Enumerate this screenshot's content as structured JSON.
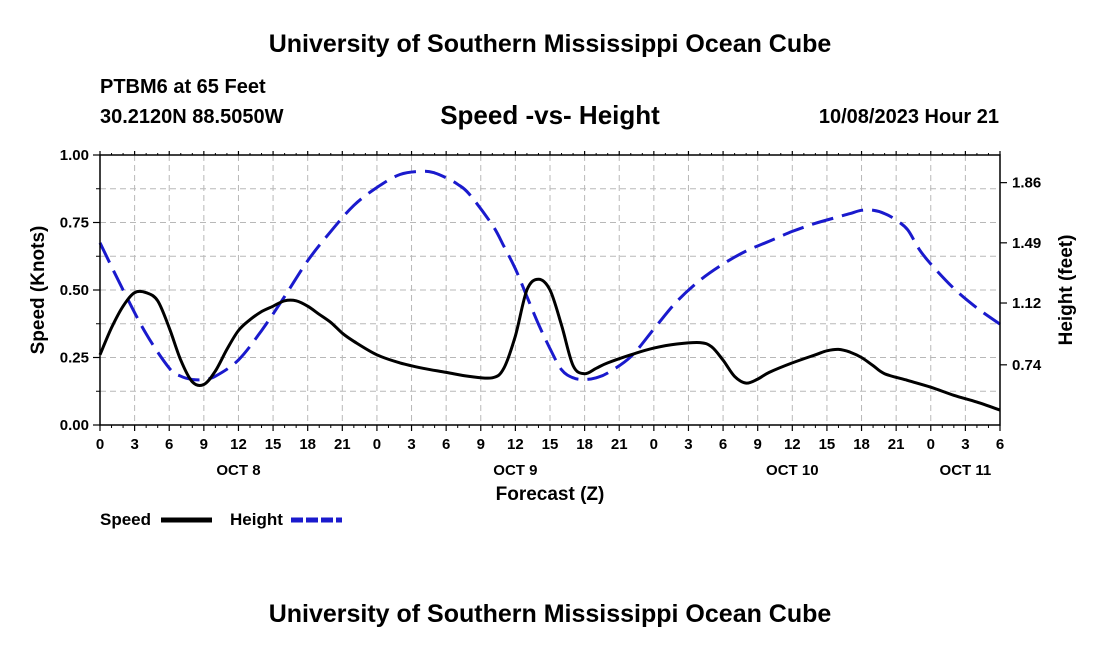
{
  "header": {
    "title": "University of Southern Mississippi Ocean Cube",
    "station": "PTBM6 at 65 Feet",
    "coords": "30.2120N  88.5050W",
    "datetime": "10/08/2023 Hour 21"
  },
  "footer": {
    "title": "University of Southern Mississippi Ocean Cube"
  },
  "chart_data": {
    "type": "line",
    "title": "Speed -vs- Height",
    "xlabel": "Forecast (Z)",
    "ylabel": "Speed (Knots)",
    "y2label": "Height (feet)",
    "x_unit": "hours since OCT 8 00Z",
    "xlim": [
      0,
      78
    ],
    "ylim": [
      0,
      1
    ],
    "y2lim": [
      0.37,
      2.03
    ],
    "grid": true,
    "x_ticks": [
      {
        "x": 0,
        "label": "0"
      },
      {
        "x": 3,
        "label": "3"
      },
      {
        "x": 6,
        "label": "6"
      },
      {
        "x": 9,
        "label": "9"
      },
      {
        "x": 12,
        "label": "12"
      },
      {
        "x": 15,
        "label": "15"
      },
      {
        "x": 18,
        "label": "18"
      },
      {
        "x": 21,
        "label": "21"
      },
      {
        "x": 24,
        "label": "0"
      },
      {
        "x": 27,
        "label": "3"
      },
      {
        "x": 30,
        "label": "6"
      },
      {
        "x": 33,
        "label": "9"
      },
      {
        "x": 36,
        "label": "12"
      },
      {
        "x": 39,
        "label": "15"
      },
      {
        "x": 42,
        "label": "18"
      },
      {
        "x": 45,
        "label": "21"
      },
      {
        "x": 48,
        "label": "0"
      },
      {
        "x": 51,
        "label": "3"
      },
      {
        "x": 54,
        "label": "6"
      },
      {
        "x": 57,
        "label": "9"
      },
      {
        "x": 60,
        "label": "12"
      },
      {
        "x": 63,
        "label": "15"
      },
      {
        "x": 66,
        "label": "18"
      },
      {
        "x": 69,
        "label": "21"
      },
      {
        "x": 72,
        "label": "0"
      },
      {
        "x": 75,
        "label": "3"
      },
      {
        "x": 78,
        "label": "6"
      }
    ],
    "date_labels": [
      {
        "x": 12,
        "label": "OCT 8"
      },
      {
        "x": 36,
        "label": "OCT 9"
      },
      {
        "x": 60,
        "label": "OCT 10"
      },
      {
        "x": 75,
        "label": "OCT 11"
      }
    ],
    "y_ticks": [
      {
        "value": 0.0,
        "label": "0.00"
      },
      {
        "value": 0.25,
        "label": "0.25"
      },
      {
        "value": 0.5,
        "label": "0.50"
      },
      {
        "value": 0.75,
        "label": "0.75"
      },
      {
        "value": 1.0,
        "label": "1.00"
      }
    ],
    "y2_ticks": [
      {
        "value": 0.74,
        "label": "0.74"
      },
      {
        "value": 1.12,
        "label": "1.12"
      },
      {
        "value": 1.49,
        "label": "1.49"
      },
      {
        "value": 1.86,
        "label": "1.86"
      }
    ],
    "series": [
      {
        "name": "Speed",
        "axis": "left",
        "color": "#000000",
        "style": "solid",
        "x": [
          0,
          1,
          2,
          3,
          4,
          5,
          6,
          7,
          8,
          9,
          10,
          11,
          12,
          13,
          14,
          15,
          16,
          17,
          18,
          19,
          20,
          21,
          22,
          24,
          26,
          28,
          30,
          32,
          34,
          35,
          36,
          37,
          38,
          39,
          40,
          41,
          42,
          43,
          44,
          46,
          48,
          50,
          52,
          53,
          54,
          55,
          56,
          57,
          58,
          60,
          62,
          63,
          64,
          65,
          66,
          67,
          68,
          70,
          72,
          74,
          76,
          78
        ],
        "y": [
          0.26,
          0.36,
          0.44,
          0.49,
          0.49,
          0.46,
          0.36,
          0.24,
          0.16,
          0.15,
          0.2,
          0.28,
          0.35,
          0.39,
          0.42,
          0.44,
          0.46,
          0.46,
          0.44,
          0.41,
          0.38,
          0.34,
          0.31,
          0.26,
          0.23,
          0.21,
          0.195,
          0.18,
          0.175,
          0.21,
          0.33,
          0.5,
          0.54,
          0.5,
          0.37,
          0.22,
          0.19,
          0.21,
          0.23,
          0.26,
          0.285,
          0.3,
          0.305,
          0.29,
          0.24,
          0.18,
          0.155,
          0.17,
          0.195,
          0.23,
          0.26,
          0.275,
          0.28,
          0.27,
          0.25,
          0.22,
          0.19,
          0.165,
          0.14,
          0.11,
          0.085,
          0.055
        ]
      },
      {
        "name": "Height",
        "axis": "right",
        "color": "#1a1acd",
        "style": "dashed",
        "x": [
          0,
          2,
          4,
          6,
          7,
          8,
          9,
          10,
          12,
          14,
          16,
          18,
          20,
          22,
          24,
          26,
          28,
          29,
          30,
          31,
          32,
          34,
          35,
          36,
          37,
          38,
          39,
          40,
          41,
          42,
          43,
          44,
          46,
          48,
          50,
          52,
          54,
          56,
          58,
          60,
          62,
          64,
          65,
          66,
          67,
          68,
          69,
          70,
          71,
          72,
          74,
          76,
          78
        ],
        "y": [
          1.49,
          1.2,
          0.93,
          0.72,
          0.67,
          0.65,
          0.65,
          0.67,
          0.77,
          0.95,
          1.16,
          1.38,
          1.56,
          1.72,
          1.83,
          1.91,
          1.93,
          1.92,
          1.89,
          1.85,
          1.79,
          1.6,
          1.47,
          1.33,
          1.16,
          0.99,
          0.84,
          0.71,
          0.66,
          0.65,
          0.66,
          0.69,
          0.79,
          0.96,
          1.13,
          1.26,
          1.36,
          1.44,
          1.5,
          1.56,
          1.61,
          1.65,
          1.67,
          1.69,
          1.69,
          1.67,
          1.63,
          1.57,
          1.45,
          1.36,
          1.21,
          1.09,
          0.99
        ]
      }
    ],
    "legend": {
      "placement": "bottom-left",
      "entries": [
        {
          "label": "Speed",
          "series": "Speed"
        },
        {
          "label": "Height",
          "series": "Height"
        }
      ]
    }
  }
}
